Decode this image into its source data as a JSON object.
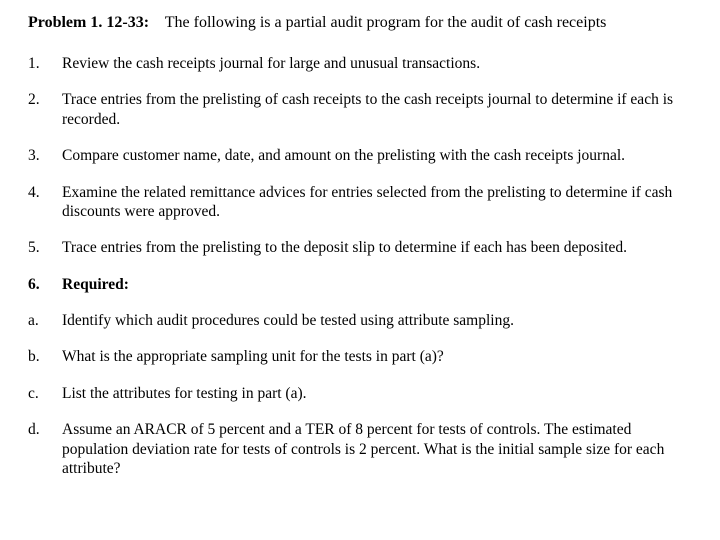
{
  "heading": {
    "label": "Problem 1. 12-33:",
    "description": "The following is a partial audit program for the audit of cash receipts"
  },
  "items": [
    {
      "num": "1.",
      "text": "Review the cash receipts journal for large and unusual transactions.",
      "bold": false
    },
    {
      "num": "2.",
      "text": "Trace entries from the prelisting of cash receipts to the cash receipts journal to determine if each is recorded.",
      "bold": false
    },
    {
      "num": "3.",
      "text": "Compare customer name, date, and amount on the prelisting with the cash receipts journal.",
      "bold": false
    },
    {
      "num": "4.",
      "text": "Examine the related remittance advices for entries selected from the prelisting to determine if cash discounts were approved.",
      "bold": false
    },
    {
      "num": "5.",
      "text": "Trace entries from the prelisting to the deposit slip to determine if each has been deposited.",
      "bold": false
    },
    {
      "num": "6.",
      "text": "Required:",
      "bold": true
    },
    {
      "num": "a.",
      "text": "Identify which audit procedures could be tested using attribute sampling.",
      "bold": false
    },
    {
      "num": "b.",
      "text": "What is the appropriate sampling unit for the tests in part (a)?",
      "bold": false
    },
    {
      "num": "c.",
      "text": "List the attributes for testing in part (a).",
      "bold": false
    },
    {
      "num": "d.",
      "text": "Assume an ARACR of 5 percent and a TER of 8 percent for tests of controls. The estimated population deviation rate for tests of controls is 2 percent. What is the initial sample size for each attribute?",
      "bold": false
    }
  ]
}
